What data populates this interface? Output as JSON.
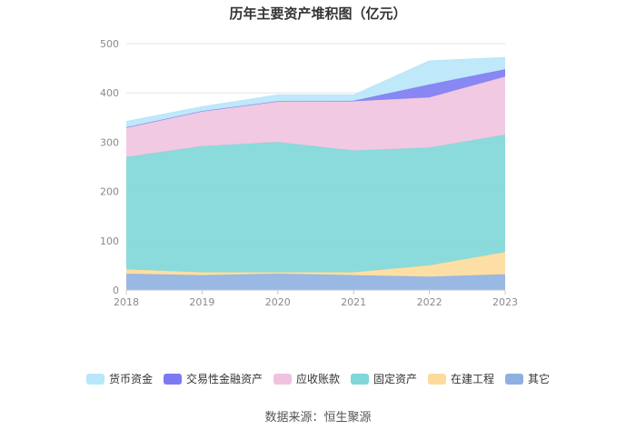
{
  "chart_data": {
    "type": "area",
    "stacked": true,
    "title": "历年主要资产堆积图（亿元）",
    "source": "数据来源：恒生聚源",
    "x": [
      "2018",
      "2019",
      "2020",
      "2021",
      "2022",
      "2023"
    ],
    "ylim": [
      0,
      500
    ],
    "yticks": [
      "0",
      "100",
      "200",
      "300",
      "400",
      "500"
    ],
    "grid": true,
    "legend_position": "bottom",
    "series": [
      {
        "name": "其它",
        "color": "#8eb0e0",
        "values": [
          33,
          30,
          33,
          30,
          27,
          32
        ]
      },
      {
        "name": "在建工程",
        "color": "#fddb9c",
        "values": [
          9,
          6,
          3,
          6,
          23,
          45
        ]
      },
      {
        "name": "固定资产",
        "color": "#7fd7d8",
        "values": [
          228,
          256,
          264,
          247,
          239,
          238
        ]
      },
      {
        "name": "应收账款",
        "color": "#efc3e0",
        "values": [
          60,
          71,
          83,
          100,
          102,
          118
        ]
      },
      {
        "name": "交易性金融资产",
        "color": "#7b7af2",
        "values": [
          0,
          0,
          0,
          1,
          26,
          15
        ]
      },
      {
        "name": "货币资金",
        "color": "#b8e6fa",
        "values": [
          12,
          9,
          13,
          12,
          48,
          24
        ]
      }
    ]
  }
}
